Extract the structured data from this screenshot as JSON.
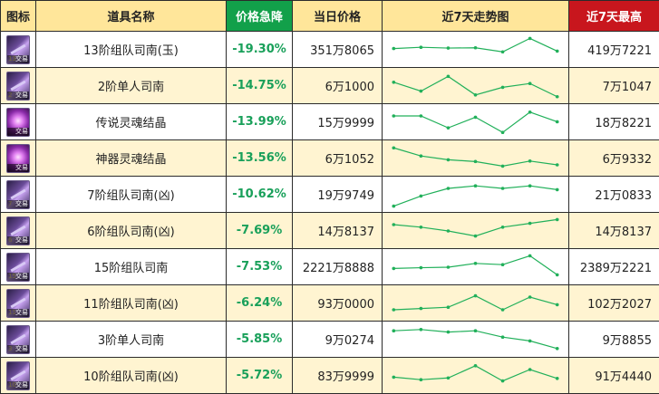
{
  "headers": [
    "图标",
    "道具名称",
    "价格急降",
    "当日价格",
    "近7天走势图",
    "近7天最高"
  ],
  "colors": {
    "header_bg": "#ffe69a",
    "header_green": "#12a04a",
    "header_red": "#c8161d",
    "drop_text": "#19a05a",
    "sparkline": "#21b05a",
    "row_alt": "#fff4d1"
  },
  "icon_tag": "交易",
  "rows": [
    {
      "icon": "compass-item-icon",
      "tier": "13",
      "name": "13阶组队司南(玉)",
      "drop": "-19.30%",
      "price": "351万8065",
      "high": "419万7221",
      "trend": [
        0.45,
        0.4,
        0.43,
        0.42,
        0.58,
        0.05,
        0.55
      ]
    },
    {
      "icon": "compass-item-icon",
      "tier": "2",
      "name": "2阶单人司南",
      "drop": "-14.75%",
      "price": "6万1000",
      "high": "7万1047",
      "trend": [
        0.35,
        0.7,
        0.12,
        0.85,
        0.55,
        0.4,
        0.92
      ]
    },
    {
      "icon": "soul-crystal-icon",
      "tier": "",
      "name": "传说灵魂结晶",
      "drop": "-13.99%",
      "price": "15万9999",
      "high": "18万8221",
      "trend": [
        0.25,
        0.25,
        0.72,
        0.3,
        0.9,
        0.1,
        0.48
      ]
    },
    {
      "icon": "soul-crystal-icon",
      "tier": "",
      "name": "神器灵魂结晶",
      "drop": "-13.56%",
      "price": "6万1052",
      "high": "6万9332",
      "trend": [
        0.08,
        0.4,
        0.55,
        0.62,
        0.8,
        0.6,
        0.75
      ]
    },
    {
      "icon": "compass-item-icon",
      "tier": "7",
      "name": "7阶组队司南(凶)",
      "drop": "-10.62%",
      "price": "19万9749",
      "high": "21万0833",
      "trend": [
        0.95,
        0.55,
        0.25,
        0.15,
        0.25,
        0.15,
        0.3
      ]
    },
    {
      "icon": "compass-item-icon",
      "tier": "6",
      "name": "6阶组队司南(凶)",
      "drop": "-7.69%",
      "price": "14万8137",
      "high": "14万8137",
      "trend": [
        0.25,
        0.35,
        0.5,
        0.7,
        0.35,
        0.2,
        0.05
      ]
    },
    {
      "icon": "compass-item-icon",
      "tier": "15",
      "name": "15阶组队司南",
      "drop": "-7.53%",
      "price": "2221万8888",
      "high": "2389万2221",
      "trend": [
        0.55,
        0.52,
        0.5,
        0.35,
        0.4,
        0.05,
        0.8
      ]
    },
    {
      "icon": "compass-item-icon",
      "tier": "11",
      "name": "11阶组队司南(凶)",
      "drop": "-6.24%",
      "price": "93万0000",
      "high": "102万2027",
      "trend": [
        0.75,
        0.7,
        0.65,
        0.2,
        0.75,
        0.25,
        0.55
      ]
    },
    {
      "icon": "compass-item-icon",
      "tier": "3",
      "name": "3阶单人司南",
      "drop": "-5.85%",
      "price": "9万0274",
      "high": "9万8855",
      "trend": [
        0.15,
        0.1,
        0.2,
        0.15,
        0.4,
        0.55,
        0.85
      ]
    },
    {
      "icon": "compass-item-icon",
      "tier": "10",
      "name": "10阶组队司南(凶)",
      "drop": "-5.72%",
      "price": "83万9999",
      "high": "91万4440",
      "trend": [
        0.55,
        0.65,
        0.58,
        0.1,
        0.7,
        0.25,
        0.6
      ]
    }
  ]
}
